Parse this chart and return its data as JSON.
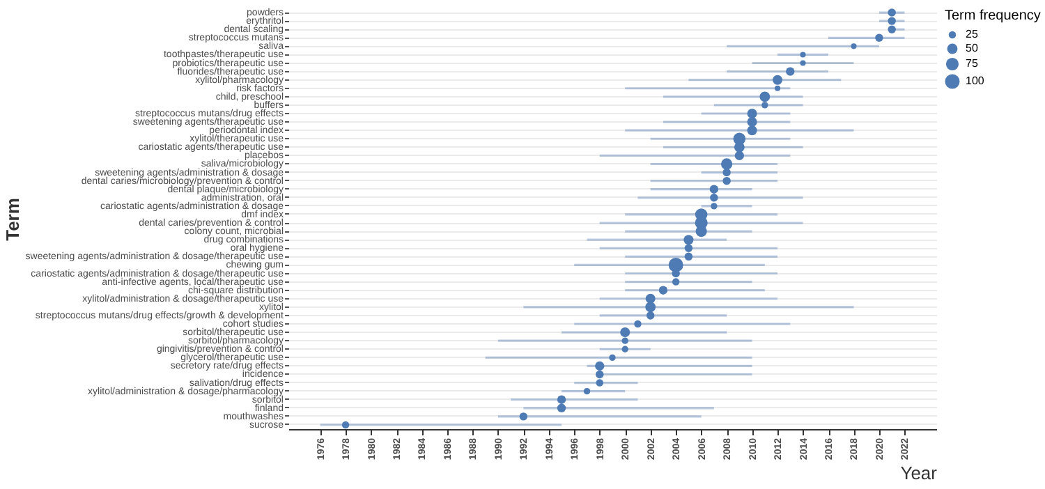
{
  "chart_data": {
    "type": "bubble",
    "orientation": "horizontal",
    "xlabel": "Year",
    "ylabel": "Term",
    "legend_title": "Term frequency",
    "grid": "y",
    "color": "#4f7bb5",
    "categories": [
      "powders",
      "erythritol",
      "dental scaling",
      "streptococcus mutans",
      "saliva",
      "toothpastes/therapeutic use",
      "probiotics/therapeutic use",
      "fluorides/therapeutic use",
      "xylitol/pharmacology",
      "risk factors",
      "child, preschool",
      "buffers",
      "streptococcus mutans/drug effects",
      "sweetening agents/therapeutic use",
      "periodontal index",
      "xylitol/therapeutic use",
      "cariostatic agents/therapeutic use",
      "placebos",
      "saliva/microbiology",
      "sweetening agents/administration & dosage",
      "dental caries/microbiology/prevention & control",
      "dental plaque/microbiology",
      "administration, oral",
      "cariostatic agents/administration & dosage",
      "dmf index",
      "dental caries/prevention & control",
      "colony count, microbial",
      "drug combinations",
      "oral hygiene",
      "sweetening agents/administration & dosage/therapeutic use",
      "chewing gum",
      "cariostatic agents/administration & dosage/therapeutic use",
      "anti-infective agents, local/therapeutic use",
      "chi-square distribution",
      "xylitol/administration & dosage/therapeutic use",
      "xylitol",
      "streptococcus mutans/drug effects/growth & development",
      "cohort studies",
      "sorbitol/therapeutic use",
      "sorbitol/pharmacology",
      "gingivitis/prevention & control",
      "glycerol/therapeutic use",
      "secretory rate/drug effects",
      "incidence",
      "salivation/drug effects",
      "xylitol/administration & dosage/pharmacology",
      "sorbitol",
      "finland",
      "mouthwashes",
      "sucrose"
    ],
    "values": [
      2021,
      2021,
      2021,
      2020,
      2018,
      2014,
      2014,
      2013,
      2012,
      2012,
      2011,
      2011,
      2010,
      2010,
      2010,
      2009,
      2009,
      2009,
      2008,
      2008,
      2008,
      2007,
      2007,
      2007,
      2006,
      2006,
      2006,
      2005,
      2005,
      2005,
      2004,
      2004,
      2004,
      2003,
      2002,
      2002,
      2002,
      2001,
      2000,
      2000,
      2000,
      1999,
      1998,
      1998,
      1998,
      1997,
      1995,
      1995,
      1992,
      1978
    ],
    "errors": [
      [
        2020,
        2022
      ],
      [
        2020,
        2022
      ],
      [
        2021,
        2022
      ],
      [
        2016,
        2022
      ],
      [
        2008,
        2020
      ],
      [
        2012,
        2016
      ],
      [
        2010,
        2018
      ],
      [
        2008,
        2016
      ],
      [
        2005,
        2017
      ],
      [
        2000,
        2013
      ],
      [
        2003,
        2014
      ],
      [
        2007,
        2014
      ],
      [
        2006,
        2013
      ],
      [
        2003,
        2013
      ],
      [
        2000,
        2018
      ],
      [
        2002,
        2013
      ],
      [
        2003,
        2014
      ],
      [
        1998,
        2013
      ],
      [
        2002,
        2012
      ],
      [
        2006,
        2012
      ],
      [
        2002,
        2012
      ],
      [
        2002,
        2010
      ],
      [
        2001,
        2014
      ],
      [
        2006,
        2010
      ],
      [
        2000,
        2012
      ],
      [
        1998,
        2014
      ],
      [
        2000,
        2010
      ],
      [
        1997,
        2008
      ],
      [
        1998,
        2012
      ],
      [
        2000,
        2012
      ],
      [
        1996,
        2011
      ],
      [
        2000,
        2012
      ],
      [
        2000,
        2010
      ],
      [
        2000,
        2011
      ],
      [
        1998,
        2012
      ],
      [
        1992,
        2018
      ],
      [
        1998,
        2008
      ],
      [
        1996,
        2013
      ],
      [
        1995,
        2008
      ],
      [
        1990,
        2010
      ],
      [
        1998,
        2002
      ],
      [
        1989,
        2010
      ],
      [
        1997,
        2010
      ],
      [
        1998,
        2010
      ],
      [
        1996,
        2001
      ],
      [
        1995,
        2000
      ],
      [
        1991,
        2001
      ],
      [
        1992,
        2007
      ],
      [
        1990,
        2006
      ],
      [
        1976,
        1995
      ]
    ],
    "sizes": [
      30,
      30,
      30,
      30,
      15,
      15,
      15,
      35,
      45,
      15,
      50,
      20,
      45,
      45,
      45,
      70,
      50,
      40,
      60,
      30,
      30,
      35,
      30,
      20,
      70,
      75,
      60,
      45,
      30,
      30,
      100,
      30,
      25,
      35,
      45,
      50,
      30,
      25,
      45,
      20,
      20,
      20,
      40,
      30,
      25,
      20,
      35,
      35,
      30,
      25
    ],
    "size_legend": [
      25,
      50,
      75,
      100
    ],
    "xlim": [
      1973.5,
      2024.5
    ],
    "xticks": [
      1976,
      1978,
      1980,
      1982,
      1984,
      1986,
      1988,
      1990,
      1992,
      1994,
      1996,
      1998,
      2000,
      2002,
      2004,
      2006,
      2008,
      2010,
      2012,
      2014,
      2016,
      2018,
      2020,
      2022
    ]
  }
}
